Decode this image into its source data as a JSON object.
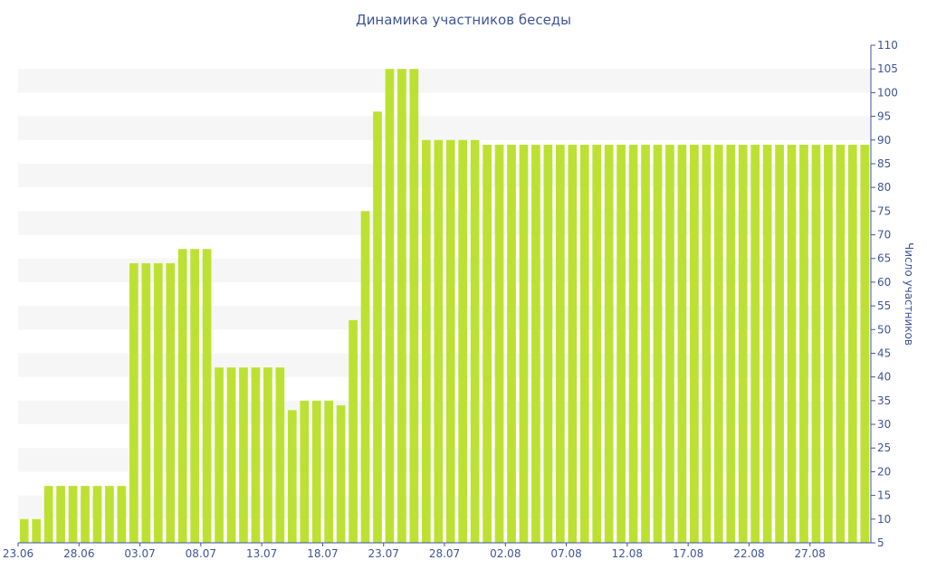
{
  "title": "Динамика участников беседы",
  "colors": {
    "bar": "#bde132",
    "band": "#f6f6f6",
    "axis": "#3d5597",
    "text": "#3d5597"
  },
  "chart_data": {
    "type": "bar",
    "title": "Динамика участников беседы",
    "xlabel": "",
    "ylabel": "Число участников",
    "ylim": [
      5,
      110
    ],
    "y_axis_position": "right",
    "y_ticks": [
      5,
      10,
      15,
      20,
      25,
      30,
      35,
      40,
      45,
      50,
      55,
      60,
      65,
      70,
      75,
      80,
      85,
      90,
      95,
      100,
      105,
      110
    ],
    "x_tick_labels": [
      "23.06",
      "28.06",
      "03.07",
      "08.07",
      "13.07",
      "18.07",
      "23.07",
      "28.07",
      "02.08",
      "07.08",
      "12.08",
      "17.08",
      "22.08",
      "27.08"
    ],
    "categories": [
      "23.06",
      "24.06",
      "25.06",
      "26.06",
      "27.06",
      "28.06",
      "29.06",
      "30.06",
      "01.07",
      "02.07",
      "03.07",
      "04.07",
      "05.07",
      "06.07",
      "07.07",
      "08.07",
      "09.07",
      "10.07",
      "11.07",
      "12.07",
      "13.07",
      "14.07",
      "15.07",
      "16.07",
      "17.07",
      "18.07",
      "19.07",
      "20.07",
      "21.07",
      "22.07",
      "23.07",
      "24.07",
      "25.07",
      "26.07",
      "27.07",
      "28.07",
      "29.07",
      "30.07",
      "31.07",
      "01.08",
      "02.08",
      "03.08",
      "04.08",
      "05.08",
      "06.08",
      "07.08",
      "08.08",
      "09.08",
      "10.08",
      "11.08",
      "12.08",
      "13.08",
      "14.08",
      "15.08",
      "16.08",
      "17.08",
      "18.08",
      "19.08",
      "20.08",
      "21.08",
      "22.08",
      "23.08",
      "24.08",
      "25.08",
      "26.08",
      "27.08",
      "28.08",
      "29.08",
      "30.08",
      "31.08"
    ],
    "values": [
      10,
      10,
      17,
      17,
      17,
      17,
      17,
      17,
      17,
      64,
      64,
      64,
      64,
      67,
      67,
      67,
      42,
      42,
      42,
      42,
      42,
      42,
      33,
      35,
      35,
      35,
      34,
      52,
      75,
      96,
      105,
      105,
      105,
      90,
      90,
      90,
      90,
      90,
      89,
      89,
      89,
      89,
      89,
      89,
      89,
      89,
      89,
      89,
      89,
      89,
      89,
      89,
      89,
      89,
      89,
      89,
      89,
      89,
      89,
      89,
      89,
      89,
      89,
      89,
      89,
      89,
      89,
      89,
      89,
      89
    ],
    "grid": "alternating horizontal bands",
    "legend": "none"
  }
}
